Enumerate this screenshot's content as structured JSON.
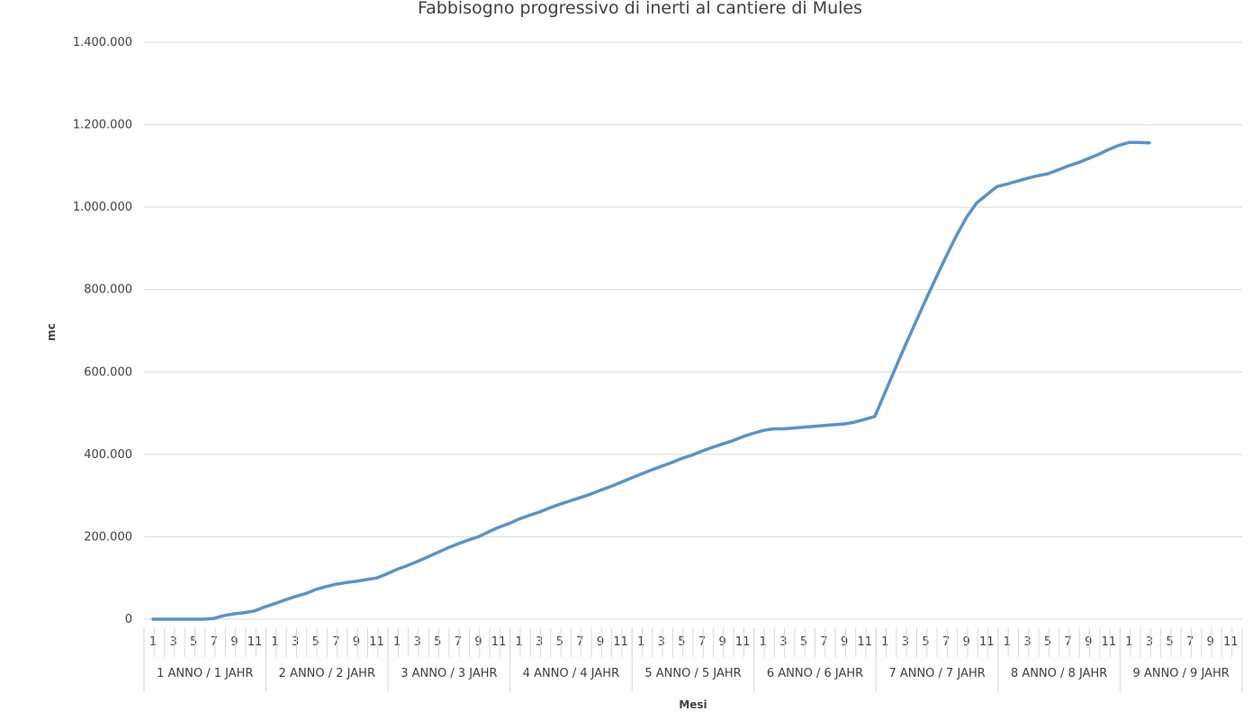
{
  "chart_data": {
    "type": "line",
    "title": "Fabbisogno progressivo di inerti al cantiere di Mules",
    "xlabel": "Mesi",
    "ylabel": "mc",
    "ylim": [
      0,
      1400000
    ],
    "yticks": [
      0,
      200000,
      400000,
      600000,
      800000,
      1000000,
      1200000,
      1400000
    ],
    "ytick_labels": [
      "0",
      "200.000",
      "400.000",
      "600.000",
      "800.000",
      "1.000.000",
      "1.200.000",
      "1.400.000"
    ],
    "grid": "horizontal",
    "month_tick_labels": [
      "1",
      "3",
      "5",
      "7",
      "9",
      "11"
    ],
    "groups": [
      "1 ANNO / 1 JAHR",
      "2 ANNO / 2 JAHR",
      "3 ANNO / 3 JAHR",
      "4 ANNO / 4 JAHR",
      "5 ANNO / 5 JAHR",
      "6 ANNO / 6 JAHR",
      "7 ANNO / 7 JAHR",
      "8 ANNO / 8 JAHR",
      "9 ANNO / 9 JAHR"
    ],
    "months_per_group": 12,
    "series": [
      {
        "color": "#5b93c7",
        "values": [
          0,
          0,
          0,
          0,
          0,
          0,
          2000,
          9000,
          13000,
          16000,
          20000,
          30000,
          38000,
          47000,
          55000,
          62000,
          72000,
          79000,
          85000,
          89000,
          92000,
          96000,
          100000,
          110000,
          121000,
          130000,
          140000,
          151000,
          162000,
          173000,
          183000,
          192000,
          200000,
          212000,
          223000,
          232000,
          243000,
          252000,
          260000,
          270000,
          279000,
          287000,
          295000,
          303000,
          313000,
          322000,
          332000,
          342000,
          352000,
          362000,
          371000,
          380000,
          390000,
          398000,
          408000,
          417000,
          425000,
          433000,
          443000,
          451000,
          458000,
          462000,
          462000,
          464000,
          466000,
          468000,
          470000,
          472000,
          474000,
          478000,
          485000,
          492000,
          550000,
          608000,
          665000,
          720000,
          775000,
          828000,
          880000,
          930000,
          975000,
          1010000,
          1030000,
          1050000,
          1056000,
          1063000,
          1070000,
          1076000,
          1081000,
          1090000,
          1100000,
          1108000,
          1118000,
          1128000,
          1140000,
          1150000,
          1157000,
          1157000,
          1156000
        ]
      }
    ]
  }
}
